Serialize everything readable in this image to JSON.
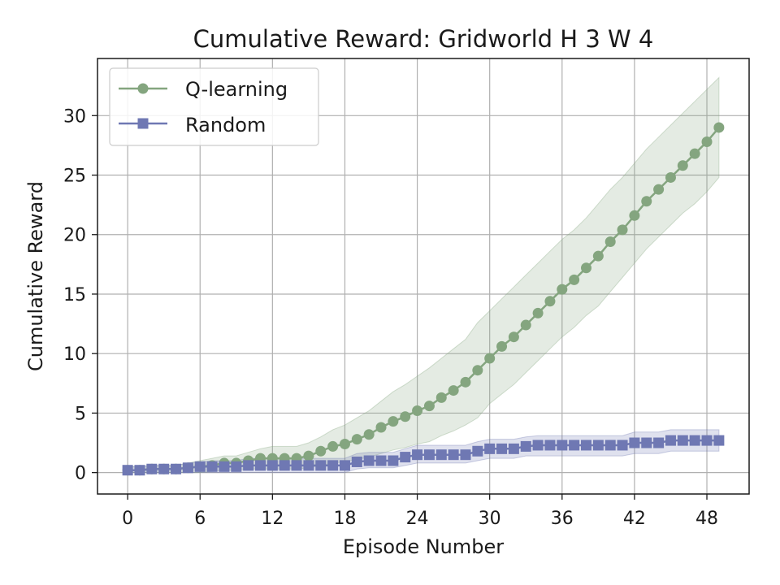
{
  "chart_data": {
    "type": "line",
    "title": "Cumulative Reward: Gridworld H 3 W 4",
    "xlabel": "Episode Number",
    "ylabel": "Cumulative Reward",
    "xlim": [
      -2.5,
      51.5
    ],
    "ylim": [
      -1.8,
      34.8
    ],
    "xticks": [
      "0",
      "6",
      "12",
      "18",
      "24",
      "30",
      "36",
      "42",
      "48"
    ],
    "yticks": [
      "0",
      "5",
      "10",
      "15",
      "20",
      "25",
      "30"
    ],
    "grid": true,
    "legend_position": "top-left",
    "series": [
      {
        "name": "Q-learning",
        "color": "#84a57f",
        "marker": "circle",
        "x": [
          0,
          1,
          2,
          3,
          4,
          5,
          6,
          7,
          8,
          9,
          10,
          11,
          12,
          13,
          14,
          15,
          16,
          17,
          18,
          19,
          20,
          21,
          22,
          23,
          24,
          25,
          26,
          27,
          28,
          29,
          30,
          31,
          32,
          33,
          34,
          35,
          36,
          37,
          38,
          39,
          40,
          41,
          42,
          43,
          44,
          45,
          46,
          47,
          48,
          49
        ],
        "mean": [
          0.2,
          0.2,
          0.3,
          0.3,
          0.3,
          0.4,
          0.5,
          0.6,
          0.8,
          0.8,
          1.0,
          1.2,
          1.2,
          1.2,
          1.2,
          1.4,
          1.8,
          2.2,
          2.4,
          2.8,
          3.2,
          3.8,
          4.3,
          4.7,
          5.2,
          5.6,
          6.3,
          6.9,
          7.6,
          8.6,
          9.6,
          10.6,
          11.4,
          12.4,
          13.4,
          14.4,
          15.4,
          16.2,
          17.2,
          18.2,
          19.4,
          20.4,
          21.6,
          22.8,
          23.8,
          24.8,
          25.8,
          26.8,
          27.8,
          29.0
        ],
        "lower": [
          0.0,
          0.0,
          0.0,
          0.0,
          0.0,
          0.0,
          0.0,
          0.1,
          0.2,
          0.2,
          0.3,
          0.3,
          0.3,
          0.3,
          0.3,
          0.4,
          0.6,
          0.8,
          0.9,
          1.1,
          1.3,
          1.6,
          1.9,
          2.1,
          2.4,
          2.6,
          3.1,
          3.5,
          4.0,
          4.6,
          5.8,
          6.6,
          7.4,
          8.4,
          9.4,
          10.4,
          11.4,
          12.2,
          13.2,
          14.0,
          15.2,
          16.4,
          17.6,
          18.8,
          19.8,
          20.8,
          21.8,
          22.6,
          23.6,
          24.8
        ],
        "upper": [
          0.5,
          0.5,
          0.6,
          0.6,
          0.6,
          0.8,
          1.0,
          1.2,
          1.4,
          1.4,
          1.7,
          2.0,
          2.2,
          2.2,
          2.2,
          2.5,
          3.0,
          3.6,
          4.0,
          4.6,
          5.2,
          6.0,
          6.8,
          7.4,
          8.1,
          8.8,
          9.6,
          10.4,
          11.2,
          12.6,
          13.6,
          14.6,
          15.6,
          16.6,
          17.6,
          18.6,
          19.6,
          20.4,
          21.4,
          22.6,
          23.8,
          24.8,
          26.0,
          27.2,
          28.2,
          29.2,
          30.2,
          31.2,
          32.2,
          33.2
        ]
      },
      {
        "name": "Random",
        "color": "#6f78b3",
        "marker": "square",
        "x": [
          0,
          1,
          2,
          3,
          4,
          5,
          6,
          7,
          8,
          9,
          10,
          11,
          12,
          13,
          14,
          15,
          16,
          17,
          18,
          19,
          20,
          21,
          22,
          23,
          24,
          25,
          26,
          27,
          28,
          29,
          30,
          31,
          32,
          33,
          34,
          35,
          36,
          37,
          38,
          39,
          40,
          41,
          42,
          43,
          44,
          45,
          46,
          47,
          48,
          49
        ],
        "mean": [
          0.2,
          0.2,
          0.3,
          0.3,
          0.3,
          0.4,
          0.5,
          0.5,
          0.5,
          0.5,
          0.6,
          0.6,
          0.6,
          0.6,
          0.6,
          0.6,
          0.6,
          0.6,
          0.6,
          0.9,
          1.0,
          1.0,
          1.0,
          1.3,
          1.5,
          1.5,
          1.5,
          1.5,
          1.5,
          1.8,
          2.0,
          2.0,
          2.0,
          2.2,
          2.3,
          2.3,
          2.3,
          2.3,
          2.3,
          2.3,
          2.3,
          2.3,
          2.5,
          2.5,
          2.5,
          2.7,
          2.7,
          2.7,
          2.7,
          2.7
        ],
        "lower": [
          0.0,
          0.0,
          0.0,
          0.0,
          0.0,
          0.0,
          0.0,
          0.0,
          0.0,
          0.0,
          0.0,
          0.0,
          0.0,
          0.0,
          0.0,
          0.0,
          0.0,
          0.0,
          0.0,
          0.3,
          0.4,
          0.4,
          0.4,
          0.6,
          0.8,
          0.8,
          0.8,
          0.8,
          0.8,
          1.0,
          1.2,
          1.2,
          1.2,
          1.4,
          1.4,
          1.4,
          1.4,
          1.4,
          1.4,
          1.4,
          1.4,
          1.4,
          1.6,
          1.6,
          1.6,
          1.8,
          1.8,
          1.8,
          1.8,
          1.8
        ],
        "upper": [
          0.5,
          0.5,
          0.6,
          0.6,
          0.6,
          0.8,
          0.9,
          1.0,
          1.0,
          1.0,
          1.2,
          1.2,
          1.2,
          1.2,
          1.2,
          1.2,
          1.2,
          1.2,
          1.2,
          1.6,
          1.7,
          1.7,
          1.7,
          2.0,
          2.3,
          2.3,
          2.3,
          2.3,
          2.3,
          2.6,
          2.8,
          2.8,
          2.8,
          3.0,
          3.1,
          3.1,
          3.1,
          3.1,
          3.1,
          3.1,
          3.1,
          3.1,
          3.4,
          3.4,
          3.4,
          3.6,
          3.6,
          3.6,
          3.6,
          3.6
        ]
      }
    ]
  }
}
